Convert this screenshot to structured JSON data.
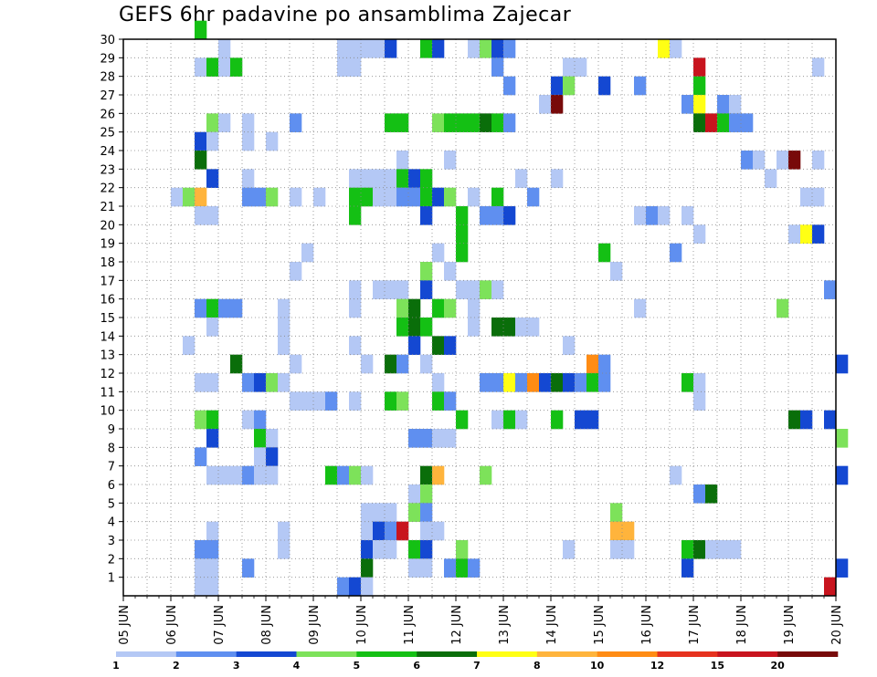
{
  "chart_data": {
    "type": "heatmap",
    "title": "GEFS 6hr padavine po ansamblima Zajecar",
    "x_ticks": [
      "05 JUN",
      "06 JUN",
      "07 JUN",
      "08 JUN",
      "09 JUN",
      "10 JUN",
      "11 JUN",
      "12 JUN",
      "13 JUN",
      "14 JUN",
      "15 JUN",
      "16 JUN",
      "17 JUN",
      "18 JUN",
      "19 JUN",
      "20 JUN"
    ],
    "y_ticks": [
      "1",
      "2",
      "3",
      "4",
      "5",
      "6",
      "7",
      "8",
      "9",
      "10",
      "11",
      "12",
      "13",
      "14",
      "15",
      "16",
      "17",
      "18",
      "19",
      "20",
      "21",
      "22",
      "23",
      "24",
      "25",
      "26",
      "27",
      "28",
      "29",
      "30"
    ],
    "ylim": [
      0,
      30
    ],
    "x_steps_per_day": 4,
    "grid": true,
    "legend": {
      "position": "bottom",
      "boundaries": [
        "1",
        "2",
        "3",
        "4",
        "5",
        "6",
        "7",
        "8",
        "10",
        "12",
        "15",
        "20"
      ],
      "colors": [
        "#b4c8f5",
        "#5f8ff0",
        "#1448d2",
        "#7de25a",
        "#14c014",
        "#0a6e0a",
        "#ffff14",
        "#ffb43c",
        "#ff8c14",
        "#e6321e",
        "#c8141e",
        "#780a0a"
      ]
    },
    "cells_note": "each cell = [x_step, member, bin_index]",
    "cells": [
      [
        6,
        30,
        4
      ],
      [
        8,
        29,
        0
      ],
      [
        18,
        29,
        0
      ],
      [
        19,
        29,
        0
      ],
      [
        20,
        29,
        0
      ],
      [
        21,
        29,
        0
      ],
      [
        22,
        29,
        2
      ],
      [
        25,
        29,
        4
      ],
      [
        26,
        29,
        2
      ],
      [
        29,
        29,
        0
      ],
      [
        30,
        29,
        3
      ],
      [
        31,
        29,
        2
      ],
      [
        32,
        29,
        1
      ],
      [
        45,
        29,
        6
      ],
      [
        46,
        29,
        0
      ],
      [
        6,
        28,
        0
      ],
      [
        7,
        28,
        4
      ],
      [
        8,
        28,
        0
      ],
      [
        9,
        28,
        4
      ],
      [
        18,
        28,
        0
      ],
      [
        19,
        28,
        0
      ],
      [
        31,
        28,
        1
      ],
      [
        37,
        28,
        0
      ],
      [
        38,
        28,
        0
      ],
      [
        48,
        28,
        10
      ],
      [
        58,
        28,
        0
      ],
      [
        32,
        27,
        1
      ],
      [
        36,
        27,
        2
      ],
      [
        37,
        27,
        3
      ],
      [
        40,
        27,
        2
      ],
      [
        43,
        27,
        1
      ],
      [
        48,
        27,
        4
      ],
      [
        35,
        26,
        0
      ],
      [
        36,
        26,
        11
      ],
      [
        47,
        26,
        1
      ],
      [
        48,
        26,
        6
      ],
      [
        50,
        26,
        1
      ],
      [
        51,
        26,
        0
      ],
      [
        7,
        25,
        3
      ],
      [
        8,
        25,
        0
      ],
      [
        10,
        25,
        0
      ],
      [
        14,
        25,
        1
      ],
      [
        22,
        25,
        4
      ],
      [
        23,
        25,
        4
      ],
      [
        26,
        25,
        3
      ],
      [
        27,
        25,
        4
      ],
      [
        28,
        25,
        4
      ],
      [
        29,
        25,
        4
      ],
      [
        30,
        25,
        5
      ],
      [
        31,
        25,
        4
      ],
      [
        32,
        25,
        1
      ],
      [
        48,
        25,
        5
      ],
      [
        49,
        25,
        10
      ],
      [
        50,
        25,
        4
      ],
      [
        51,
        25,
        1
      ],
      [
        52,
        25,
        1
      ],
      [
        6,
        24,
        2
      ],
      [
        7,
        24,
        0
      ],
      [
        10,
        24,
        0
      ],
      [
        12,
        24,
        0
      ],
      [
        6,
        23,
        5
      ],
      [
        23,
        23,
        0
      ],
      [
        27,
        23,
        0
      ],
      [
        52,
        23,
        1
      ],
      [
        53,
        23,
        0
      ],
      [
        55,
        23,
        0
      ],
      [
        56,
        23,
        11
      ],
      [
        58,
        23,
        0
      ],
      [
        7,
        22,
        2
      ],
      [
        10,
        22,
        0
      ],
      [
        19,
        22,
        0
      ],
      [
        20,
        22,
        0
      ],
      [
        21,
        22,
        0
      ],
      [
        22,
        22,
        0
      ],
      [
        23,
        22,
        4
      ],
      [
        24,
        22,
        2
      ],
      [
        25,
        22,
        4
      ],
      [
        33,
        22,
        0
      ],
      [
        36,
        22,
        0
      ],
      [
        54,
        22,
        0
      ],
      [
        4,
        21,
        0
      ],
      [
        5,
        21,
        3
      ],
      [
        6,
        21,
        7
      ],
      [
        10,
        21,
        1
      ],
      [
        11,
        21,
        1
      ],
      [
        12,
        21,
        3
      ],
      [
        14,
        21,
        0
      ],
      [
        16,
        21,
        0
      ],
      [
        19,
        21,
        4
      ],
      [
        20,
        21,
        4
      ],
      [
        21,
        21,
        0
      ],
      [
        22,
        21,
        0
      ],
      [
        23,
        21,
        1
      ],
      [
        24,
        21,
        1
      ],
      [
        25,
        21,
        4
      ],
      [
        26,
        21,
        2
      ],
      [
        27,
        21,
        3
      ],
      [
        29,
        21,
        0
      ],
      [
        31,
        21,
        4
      ],
      [
        34,
        21,
        1
      ],
      [
        57,
        21,
        0
      ],
      [
        58,
        21,
        0
      ],
      [
        6,
        20,
        0
      ],
      [
        7,
        20,
        0
      ],
      [
        19,
        20,
        4
      ],
      [
        25,
        20,
        2
      ],
      [
        28,
        20,
        4
      ],
      [
        30,
        20,
        1
      ],
      [
        31,
        20,
        1
      ],
      [
        32,
        20,
        2
      ],
      [
        43,
        20,
        0
      ],
      [
        44,
        20,
        1
      ],
      [
        45,
        20,
        0
      ],
      [
        47,
        20,
        0
      ],
      [
        28,
        19,
        4
      ],
      [
        48,
        19,
        0
      ],
      [
        56,
        19,
        0
      ],
      [
        57,
        19,
        6
      ],
      [
        58,
        19,
        2
      ],
      [
        15,
        18,
        0
      ],
      [
        26,
        18,
        0
      ],
      [
        28,
        18,
        4
      ],
      [
        40,
        18,
        4
      ],
      [
        46,
        18,
        1
      ],
      [
        14,
        17,
        0
      ],
      [
        25,
        17,
        3
      ],
      [
        27,
        17,
        0
      ],
      [
        41,
        17,
        0
      ],
      [
        19,
        16,
        0
      ],
      [
        21,
        16,
        0
      ],
      [
        22,
        16,
        0
      ],
      [
        23,
        16,
        0
      ],
      [
        25,
        16,
        2
      ],
      [
        28,
        16,
        0
      ],
      [
        29,
        16,
        0
      ],
      [
        30,
        16,
        3
      ],
      [
        31,
        16,
        0
      ],
      [
        59,
        16,
        1
      ],
      [
        6,
        15,
        1
      ],
      [
        7,
        15,
        4
      ],
      [
        8,
        15,
        1
      ],
      [
        9,
        15,
        1
      ],
      [
        13,
        15,
        0
      ],
      [
        19,
        15,
        0
      ],
      [
        23,
        15,
        3
      ],
      [
        24,
        15,
        5
      ],
      [
        26,
        15,
        4
      ],
      [
        27,
        15,
        3
      ],
      [
        29,
        15,
        0
      ],
      [
        43,
        15,
        0
      ],
      [
        55,
        15,
        3
      ],
      [
        7,
        14,
        0
      ],
      [
        13,
        14,
        0
      ],
      [
        23,
        14,
        4
      ],
      [
        24,
        14,
        5
      ],
      [
        25,
        14,
        4
      ],
      [
        29,
        14,
        0
      ],
      [
        31,
        14,
        5
      ],
      [
        32,
        14,
        5
      ],
      [
        33,
        14,
        0
      ],
      [
        34,
        14,
        0
      ],
      [
        5,
        13,
        0
      ],
      [
        13,
        13,
        0
      ],
      [
        19,
        13,
        0
      ],
      [
        24,
        13,
        2
      ],
      [
        26,
        13,
        5
      ],
      [
        27,
        13,
        2
      ],
      [
        37,
        13,
        0
      ],
      [
        9,
        12,
        5
      ],
      [
        14,
        12,
        0
      ],
      [
        20,
        12,
        0
      ],
      [
        22,
        12,
        5
      ],
      [
        23,
        12,
        1
      ],
      [
        25,
        12,
        0
      ],
      [
        39,
        12,
        8
      ],
      [
        40,
        12,
        1
      ],
      [
        60,
        12,
        2
      ],
      [
        6,
        11,
        0
      ],
      [
        7,
        11,
        0
      ],
      [
        10,
        11,
        1
      ],
      [
        11,
        11,
        2
      ],
      [
        12,
        11,
        3
      ],
      [
        13,
        11,
        0
      ],
      [
        26,
        11,
        0
      ],
      [
        30,
        11,
        1
      ],
      [
        31,
        11,
        1
      ],
      [
        32,
        11,
        6
      ],
      [
        33,
        11,
        1
      ],
      [
        34,
        11,
        8
      ],
      [
        35,
        11,
        2
      ],
      [
        36,
        11,
        5
      ],
      [
        37,
        11,
        2
      ],
      [
        38,
        11,
        1
      ],
      [
        39,
        11,
        4
      ],
      [
        40,
        11,
        1
      ],
      [
        47,
        11,
        4
      ],
      [
        48,
        11,
        0
      ],
      [
        14,
        10,
        0
      ],
      [
        15,
        10,
        0
      ],
      [
        16,
        10,
        0
      ],
      [
        17,
        10,
        1
      ],
      [
        19,
        10,
        0
      ],
      [
        22,
        10,
        4
      ],
      [
        23,
        10,
        3
      ],
      [
        26,
        10,
        4
      ],
      [
        27,
        10,
        1
      ],
      [
        48,
        10,
        0
      ],
      [
        6,
        9,
        3
      ],
      [
        7,
        9,
        4
      ],
      [
        10,
        9,
        0
      ],
      [
        11,
        9,
        1
      ],
      [
        28,
        9,
        4
      ],
      [
        31,
        9,
        0
      ],
      [
        32,
        9,
        4
      ],
      [
        33,
        9,
        0
      ],
      [
        36,
        9,
        4
      ],
      [
        38,
        9,
        2
      ],
      [
        39,
        9,
        2
      ],
      [
        56,
        9,
        5
      ],
      [
        57,
        9,
        2
      ],
      [
        59,
        9,
        2
      ],
      [
        7,
        8,
        2
      ],
      [
        11,
        8,
        4
      ],
      [
        12,
        8,
        0
      ],
      [
        24,
        8,
        1
      ],
      [
        25,
        8,
        1
      ],
      [
        26,
        8,
        0
      ],
      [
        27,
        8,
        0
      ],
      [
        60,
        8,
        3
      ],
      [
        6,
        7,
        1
      ],
      [
        11,
        7,
        0
      ],
      [
        12,
        7,
        2
      ],
      [
        7,
        6,
        0
      ],
      [
        8,
        6,
        0
      ],
      [
        9,
        6,
        0
      ],
      [
        10,
        6,
        1
      ],
      [
        11,
        6,
        0
      ],
      [
        12,
        6,
        0
      ],
      [
        17,
        6,
        4
      ],
      [
        18,
        6,
        1
      ],
      [
        19,
        6,
        3
      ],
      [
        20,
        6,
        0
      ],
      [
        25,
        6,
        5
      ],
      [
        26,
        6,
        7
      ],
      [
        30,
        6,
        3
      ],
      [
        46,
        6,
        0
      ],
      [
        60,
        6,
        2
      ],
      [
        24,
        5,
        0
      ],
      [
        25,
        5,
        3
      ],
      [
        48,
        5,
        1
      ],
      [
        49,
        5,
        5
      ],
      [
        20,
        4,
        0
      ],
      [
        21,
        4,
        0
      ],
      [
        22,
        4,
        0
      ],
      [
        24,
        4,
        3
      ],
      [
        25,
        4,
        1
      ],
      [
        41,
        4,
        3
      ],
      [
        7,
        3,
        0
      ],
      [
        13,
        3,
        0
      ],
      [
        20,
        3,
        0
      ],
      [
        21,
        3,
        2
      ],
      [
        22,
        3,
        1
      ],
      [
        23,
        3,
        10
      ],
      [
        25,
        3,
        0
      ],
      [
        26,
        3,
        0
      ],
      [
        41,
        3,
        7
      ],
      [
        42,
        3,
        7
      ],
      [
        6,
        2,
        1
      ],
      [
        7,
        2,
        1
      ],
      [
        13,
        2,
        0
      ],
      [
        20,
        2,
        2
      ],
      [
        21,
        2,
        0
      ],
      [
        22,
        2,
        0
      ],
      [
        24,
        2,
        4
      ],
      [
        25,
        2,
        2
      ],
      [
        28,
        2,
        3
      ],
      [
        37,
        2,
        0
      ],
      [
        41,
        2,
        0
      ],
      [
        42,
        2,
        0
      ],
      [
        47,
        2,
        4
      ],
      [
        48,
        2,
        5
      ],
      [
        49,
        2,
        0
      ],
      [
        50,
        2,
        0
      ],
      [
        51,
        2,
        0
      ],
      [
        6,
        1,
        0
      ],
      [
        7,
        1,
        0
      ],
      [
        10,
        1,
        1
      ],
      [
        20,
        1,
        5
      ],
      [
        24,
        1,
        0
      ],
      [
        25,
        1,
        0
      ],
      [
        27,
        1,
        1
      ],
      [
        28,
        1,
        4
      ],
      [
        29,
        1,
        1
      ],
      [
        47,
        1,
        2
      ],
      [
        60,
        1,
        2
      ],
      [
        6,
        0,
        0
      ],
      [
        7,
        0,
        0
      ],
      [
        18,
        0,
        1
      ],
      [
        19,
        0,
        2
      ],
      [
        20,
        0,
        0
      ],
      [
        59,
        0,
        10
      ]
    ]
  }
}
